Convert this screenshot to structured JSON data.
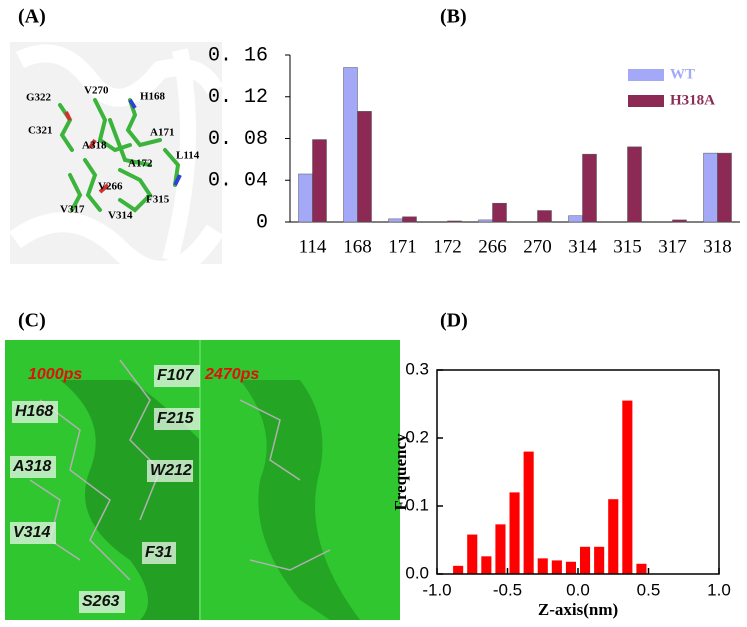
{
  "panel_labels": [
    "(A)",
    "(B)",
    "(C)",
    "(D)"
  ],
  "panel_a": {
    "labels": [
      "G322",
      "V270",
      "H168",
      "C321",
      "A171",
      "L114",
      "A318",
      "A172",
      "V266",
      "F315",
      "V317",
      "V314"
    ]
  },
  "panel_c": {
    "times": [
      "1000ps",
      "2470ps"
    ],
    "labels": [
      "H168",
      "A318",
      "V314",
      "S263",
      "F107",
      "F215",
      "W212",
      "F31"
    ]
  },
  "chart_data": [
    {
      "type": "bar",
      "categories": [
        "114",
        "168",
        "171",
        "172",
        "266",
        "270",
        "314",
        "315",
        "317",
        "318"
      ],
      "series": [
        {
          "name": "WT",
          "color": "#a3a9f7",
          "values": [
            0.046,
            0.148,
            0.003,
            0,
            0.002,
            0,
            0.006,
            0,
            0,
            0.066
          ]
        },
        {
          "name": "H318A",
          "color": "#8c2a55",
          "values": [
            0.079,
            0.106,
            0.005,
            0.001,
            0.018,
            0.011,
            0.065,
            0.072,
            0.002,
            0.066
          ]
        }
      ],
      "ylim": [
        0,
        0.16
      ],
      "yticks": [
        0,
        {
          "value": 0.04,
          "label": "0. 04"
        },
        {
          "value": 0.08,
          "label": "0. 08"
        },
        {
          "value": 0.12,
          "label": "0. 12"
        },
        {
          "value": 0.16,
          "label": "0. 16"
        }
      ],
      "legend": "upper right"
    },
    {
      "type": "histogram",
      "bins": [
        -0.9,
        -0.8,
        -0.7,
        -0.6,
        -0.5,
        -0.4,
        -0.3,
        -0.2,
        -0.1,
        0,
        0.1,
        0.2,
        0.3,
        0.4,
        0.5
      ],
      "values": [
        0.012,
        0.058,
        0.026,
        0.073,
        0.12,
        0.18,
        0.023,
        0.02,
        0.018,
        0.04,
        0.04,
        0.11,
        0.255,
        0.015
      ],
      "color": "#ff0000",
      "xlabel": "Z-axis(nm)",
      "ylabel": "Frequency",
      "xlim": [
        -1,
        1
      ],
      "xticks": [
        {
          "value": -1,
          "label": "-1.0"
        },
        {
          "value": -0.5,
          "label": "-0.5"
        },
        {
          "value": 0,
          "label": "0.0"
        },
        {
          "value": 0.5,
          "label": "0.5"
        },
        {
          "value": 1,
          "label": "1.0"
        }
      ],
      "ylim": [
        0,
        0.3
      ],
      "yticks": [
        {
          "value": 0,
          "label": "0.0"
        },
        0.1,
        0.2,
        0.3
      ]
    }
  ]
}
